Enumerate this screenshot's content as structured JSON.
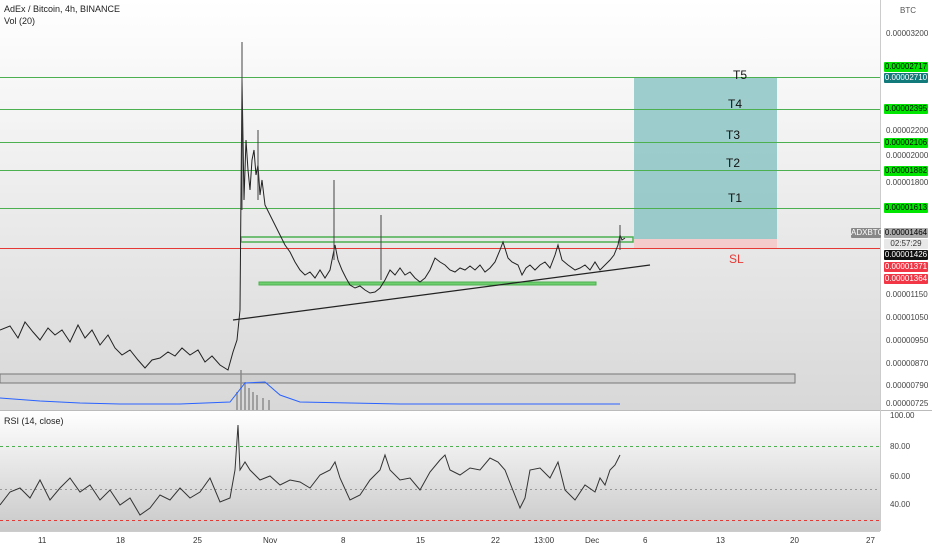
{
  "header": {
    "title": "AdEx / Bitcoin, 4h, BINANCE",
    "volume_label": "Vol (20)",
    "rsi_label": "RSI (14, close)",
    "currency_button": "BTC"
  },
  "price_axis": {
    "ticks": [
      "0.00003200",
      "0.00002200",
      "0.00002000",
      "0.00001800",
      "0.00001150",
      "0.00001050",
      "0.00000950",
      "0.00000870",
      "0.00000790",
      "0.00000725"
    ]
  },
  "rsi_axis": {
    "ticks": [
      "100.00",
      "80.00",
      "60.00",
      "40.00"
    ]
  },
  "time_axis": {
    "ticks": [
      "11",
      "18",
      "25",
      "Nov",
      "8",
      "15",
      "22",
      "13:00",
      "Dec",
      "6",
      "13",
      "20",
      "27"
    ]
  },
  "targets": [
    {
      "label": "T5",
      "price": "0.00002717"
    },
    {
      "label": "T4",
      "price": "0.00002395"
    },
    {
      "label": "T3",
      "price": "0.00002106"
    },
    {
      "label": "T2",
      "price": "0.00001882"
    },
    {
      "label": "T1",
      "price": "0.00001613"
    }
  ],
  "stop_loss": {
    "label": "SL",
    "price": "0.00001371"
  },
  "badges": {
    "target_top": "0.00002710",
    "symbol": "ADXBTC",
    "last_price": "0.00001464",
    "countdown": "02:57:29",
    "entry": "0.00001426",
    "stop_secondary": "0.00001364"
  },
  "colors": {
    "target_line": "#4caf50",
    "target_badge": "#00e600",
    "stop_line": "#e53935",
    "stop_badge": "#f23645",
    "profit_zone": "#7fbfbf",
    "loss_zone": "#f6c9c9",
    "rsi_band": "#dddddd"
  }
}
